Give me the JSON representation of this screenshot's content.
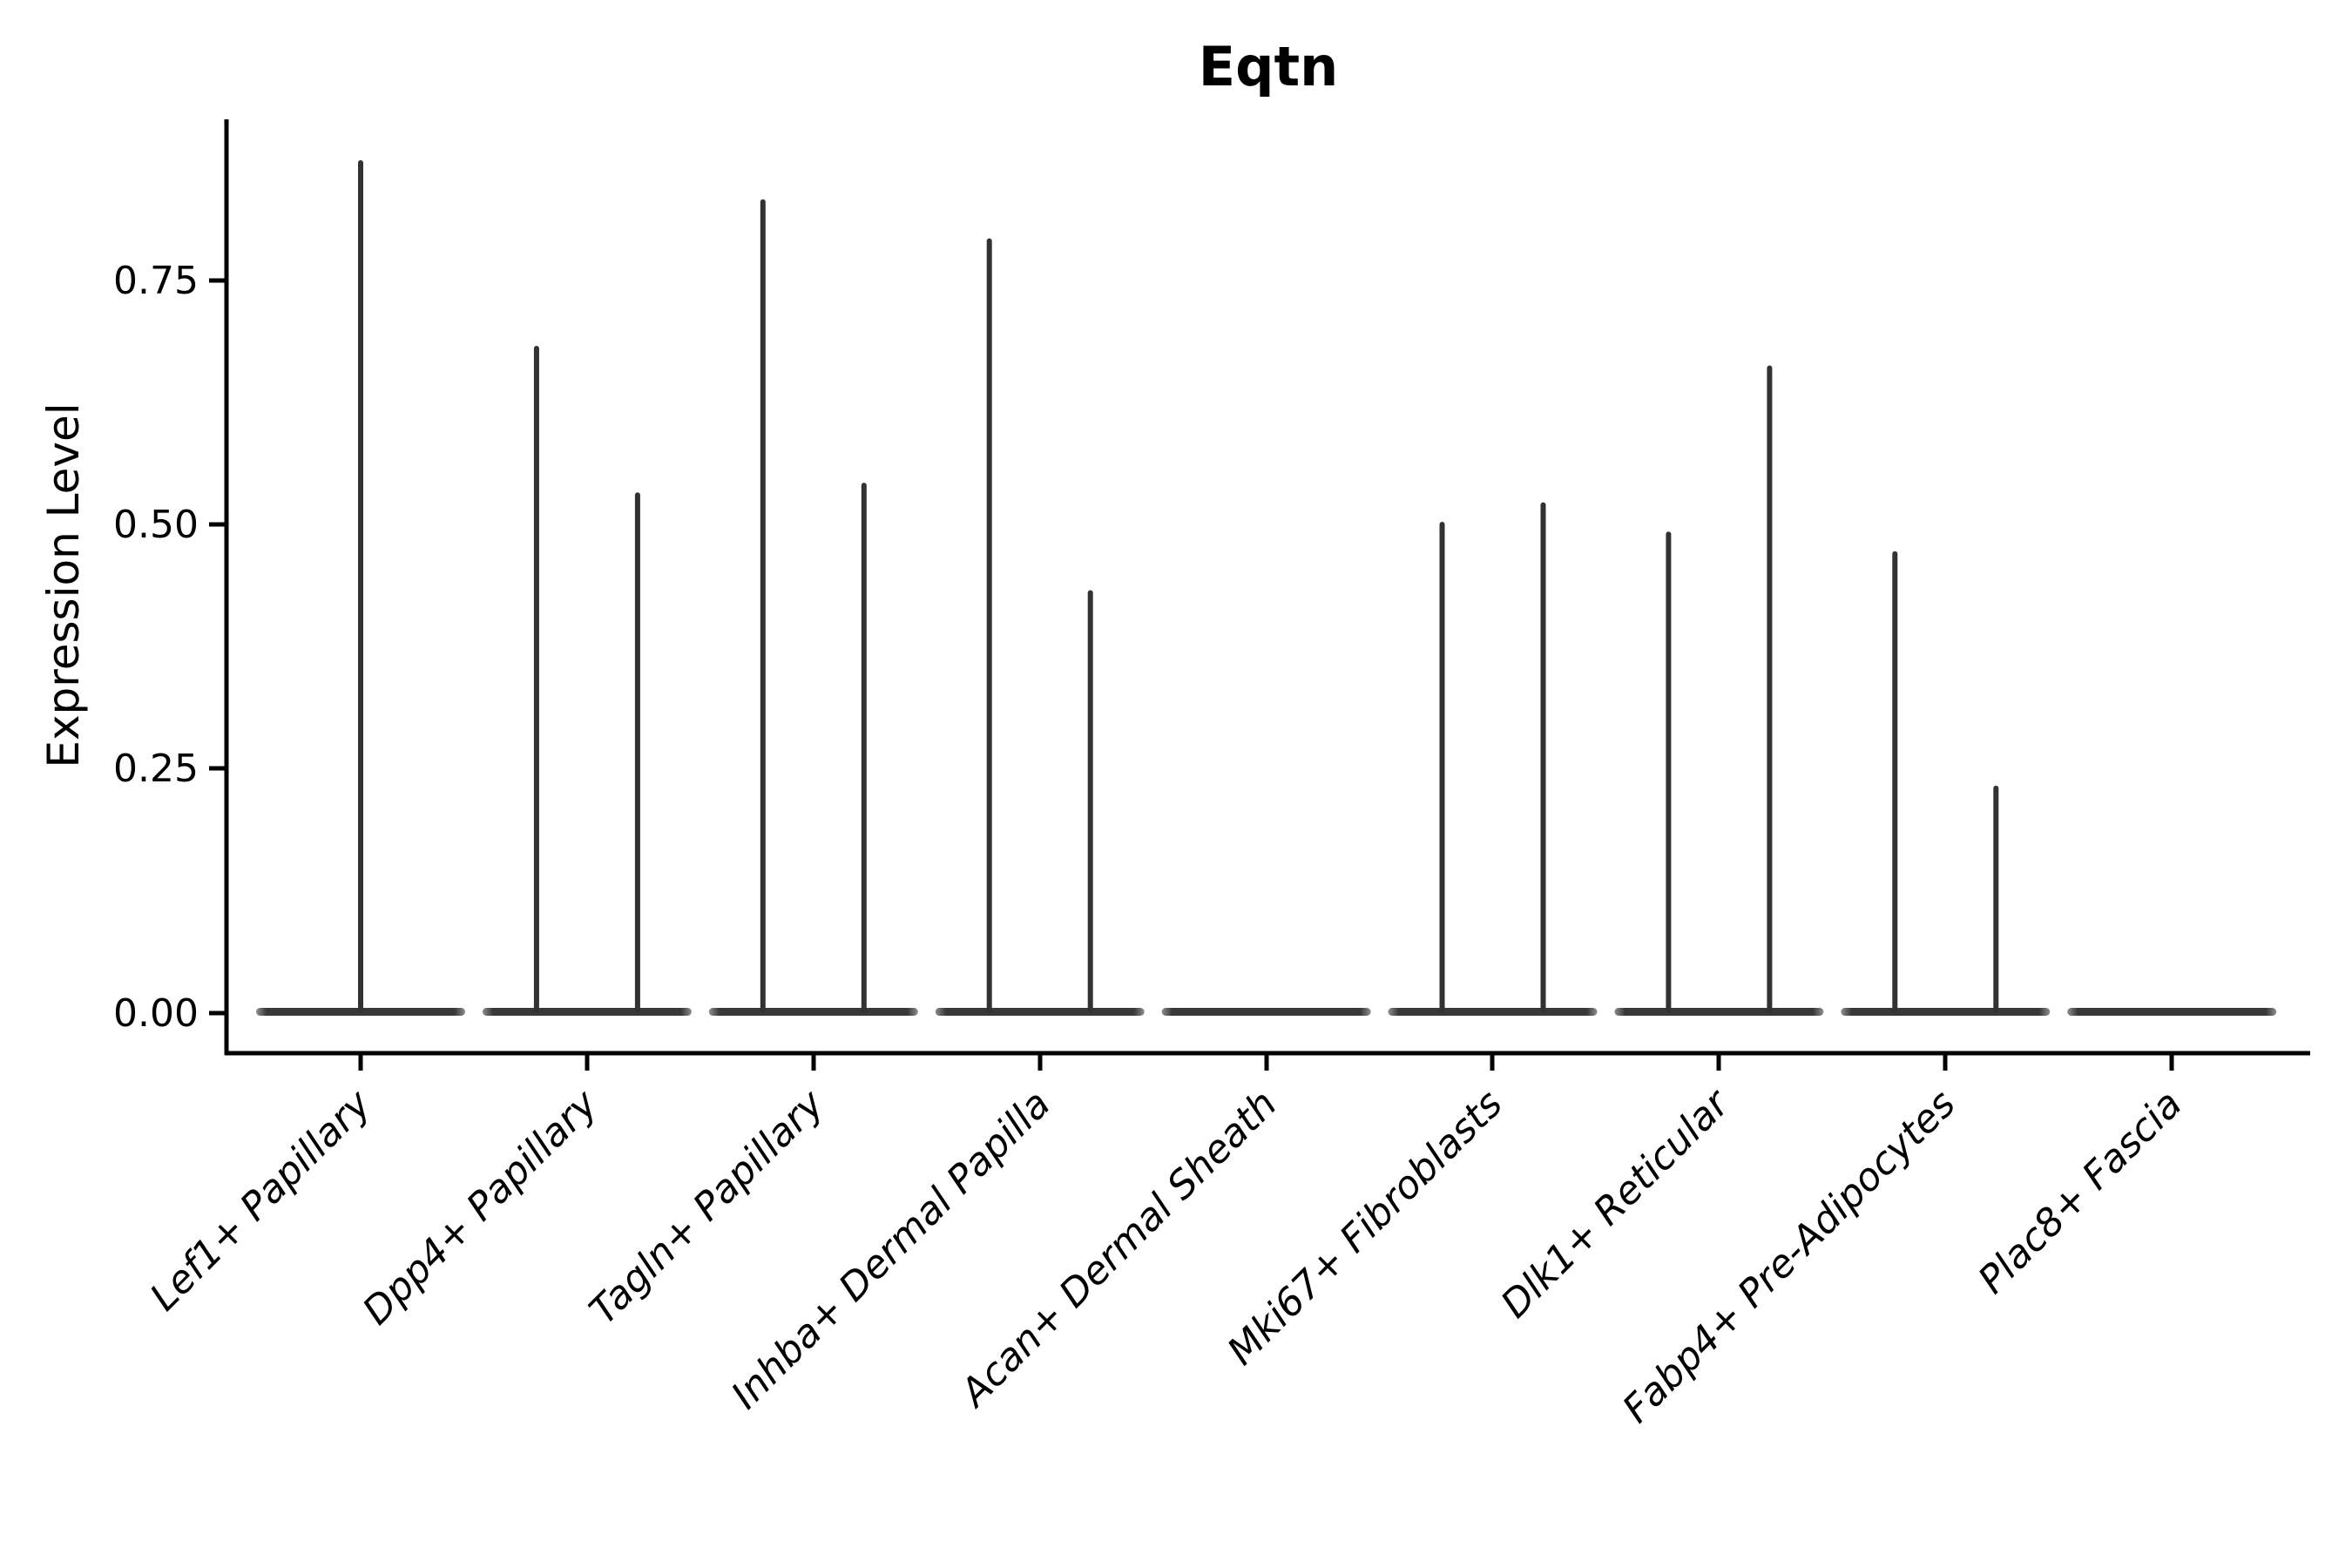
{
  "page": {
    "background_color": "#ffffff"
  },
  "chart_data": {
    "type": "violin",
    "title": "Eqtn",
    "xlabel": "",
    "ylabel": "Expression Level",
    "grid": false,
    "legend_position": "none",
    "ylim": [
      -0.04,
      0.91
    ],
    "yticks": [
      0.0,
      0.25,
      0.5,
      0.75
    ],
    "ytick_labels": [
      "0.00",
      "0.25",
      "0.50",
      "0.75"
    ],
    "xtick_label_rotation_degrees": 45,
    "categories": [
      "Lef1+ Papillary",
      "Dpp4+ Papillary",
      "Tagln+ Papillary",
      "Inhba+ Dermal Papilla",
      "Acan+ Dermal Sheath",
      "Mki67+ Fibroblasts",
      "Dlk1+ Reticular",
      "Fabp4+ Pre-Adipocytes",
      "Plac8+ Fascia"
    ],
    "violin_color": "#323232",
    "description": "Each category shows a flat violin body at expression 0 (most cells not expressing) with thin spikes reaching the maximum expression values; Lef1+ Papillary has a single centered spike, Acan+ Dermal Sheath and Plac8+ Fascia have no spikes.",
    "violins": [
      {
        "category": "Lef1+ Papillary",
        "baseline_at_zero": true,
        "spikes": [
          {
            "position": "center",
            "max": 0.87
          }
        ]
      },
      {
        "category": "Dpp4+ Papillary",
        "baseline_at_zero": true,
        "spikes": [
          {
            "position": "left",
            "max": 0.68
          },
          {
            "position": "right",
            "max": 0.53
          }
        ]
      },
      {
        "category": "Tagln+ Papillary",
        "baseline_at_zero": true,
        "spikes": [
          {
            "position": "left",
            "max": 0.83
          },
          {
            "position": "right",
            "max": 0.54
          }
        ]
      },
      {
        "category": "Inhba+ Dermal Papilla",
        "baseline_at_zero": true,
        "spikes": [
          {
            "position": "left",
            "max": 0.79
          },
          {
            "position": "right",
            "max": 0.43
          }
        ]
      },
      {
        "category": "Acan+ Dermal Sheath",
        "baseline_at_zero": true,
        "spikes": []
      },
      {
        "category": "Mki67+ Fibroblasts",
        "baseline_at_zero": true,
        "spikes": [
          {
            "position": "left",
            "max": 0.5
          },
          {
            "position": "right",
            "max": 0.52
          }
        ]
      },
      {
        "category": "Dlk1+ Reticular",
        "baseline_at_zero": true,
        "spikes": [
          {
            "position": "left",
            "max": 0.49
          },
          {
            "position": "right",
            "max": 0.66
          }
        ]
      },
      {
        "category": "Fabp4+ Pre-Adipocytes",
        "baseline_at_zero": true,
        "spikes": [
          {
            "position": "left",
            "max": 0.47
          },
          {
            "position": "right",
            "max": 0.23
          }
        ]
      },
      {
        "category": "Plac8+ Fascia",
        "baseline_at_zero": true,
        "spikes": []
      }
    ]
  }
}
